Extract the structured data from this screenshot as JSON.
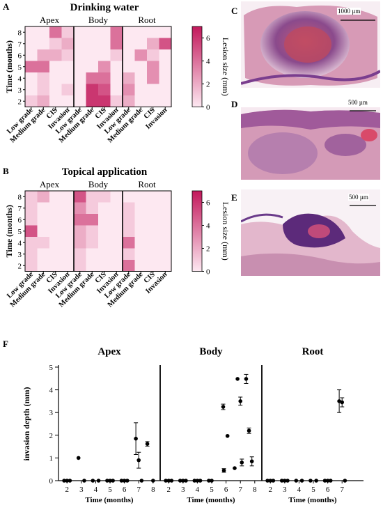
{
  "panels": {
    "a": "A",
    "b": "B",
    "c": "C",
    "d": "D",
    "e": "E",
    "f": "F"
  },
  "scales": {
    "c": "1000 µm",
    "d": "500 µm",
    "e": "500 µm"
  },
  "colors": {
    "low": "#fde8f1",
    "high": "#c2185b",
    "ink": "#000000"
  },
  "chart_data": [
    {
      "type": "heatmap",
      "title": "Drinking water",
      "ylabel": "Time (months)",
      "colorbar_label": "Lesion size (mm)",
      "colorbar_ticks": [
        "0",
        "2",
        "4",
        "6"
      ],
      "vmin": 0,
      "vmax": 7,
      "groups": [
        "Apex",
        "Body",
        "Root"
      ],
      "columns": [
        "Low grade",
        "Medium grade",
        "CIS",
        "Invasion"
      ],
      "rows": [
        "8",
        "7",
        "6",
        "5",
        "4",
        "3",
        "2"
      ],
      "values": [
        [
          [
            0,
            0,
            4,
            1
          ],
          [
            0,
            0,
            0,
            4
          ],
          [
            0,
            0,
            0,
            0
          ]
        ],
        [
          [
            0,
            0,
            1,
            2
          ],
          [
            0,
            0,
            0,
            4
          ],
          [
            0,
            0,
            2,
            5
          ]
        ],
        [
          [
            0,
            2,
            2,
            1
          ],
          [
            0,
            0,
            0,
            1
          ],
          [
            0,
            3,
            1,
            0
          ]
        ],
        [
          [
            4,
            4,
            0,
            0
          ],
          [
            0,
            0,
            3,
            0
          ],
          [
            0,
            0,
            3,
            0
          ]
        ],
        [
          [
            0,
            1,
            0,
            0
          ],
          [
            0,
            4,
            4,
            0
          ],
          [
            2,
            0,
            3,
            0
          ]
        ],
        [
          [
            0,
            1,
            0,
            1
          ],
          [
            0,
            6,
            5,
            0
          ],
          [
            3,
            0,
            0,
            0
          ]
        ],
        [
          [
            1,
            2,
            0,
            0
          ],
          [
            0,
            6,
            6,
            1
          ],
          [
            2,
            0,
            0,
            0
          ]
        ]
      ]
    },
    {
      "type": "heatmap",
      "title": "Topical application",
      "ylabel": "Time (months)",
      "colorbar_label": "Lesion size (mm)",
      "colorbar_ticks": [
        "0",
        "2",
        "4",
        "6"
      ],
      "vmin": 0,
      "vmax": 7,
      "groups": [
        "Apex",
        "Body",
        "Root"
      ],
      "columns": [
        "Low grade",
        "Medium grade",
        "CIS",
        "Invasion"
      ],
      "rows": [
        "8",
        "7",
        "6",
        "5",
        "4",
        "3",
        "2"
      ],
      "values": [
        [
          [
            1,
            2,
            0,
            0
          ],
          [
            5,
            1,
            1,
            0
          ],
          [
            0,
            0,
            0,
            0
          ]
        ],
        [
          [
            1,
            0,
            0,
            0
          ],
          [
            3,
            1,
            0,
            0
          ],
          [
            1,
            0,
            0,
            0
          ]
        ],
        [
          [
            1,
            0,
            0,
            0
          ],
          [
            4,
            4,
            0,
            0
          ],
          [
            1,
            0,
            0,
            0
          ]
        ],
        [
          [
            5,
            0,
            0,
            0
          ],
          [
            2,
            1,
            0,
            0
          ],
          [
            1,
            0,
            0,
            0
          ]
        ],
        [
          [
            1,
            1,
            0,
            0
          ],
          [
            2,
            1,
            0,
            0
          ],
          [
            4,
            0,
            0,
            0
          ]
        ],
        [
          [
            1,
            0,
            0,
            0
          ],
          [
            1,
            0,
            0,
            0
          ],
          [
            1,
            0,
            0,
            0
          ]
        ],
        [
          [
            1,
            0,
            0,
            0
          ],
          [
            1,
            0,
            0,
            0
          ],
          [
            4,
            0,
            0,
            0
          ]
        ]
      ]
    },
    {
      "type": "scatter",
      "ylabel": "invasion depth (mm)",
      "xlabel": "Time (months)",
      "ylim": [
        0,
        5
      ],
      "yticks": [
        "0",
        "1",
        "2",
        "3",
        "4",
        "5"
      ],
      "xticks": [
        "2",
        "3",
        "4",
        "5",
        "6",
        "7",
        "8"
      ],
      "xlim": [
        1.6,
        8.3
      ],
      "groups": [
        {
          "name": "Apex",
          "points": [
            {
              "x": 1.8,
              "y": 0
            },
            {
              "x": 2,
              "y": 0
            },
            {
              "x": 2.2,
              "y": 0
            },
            {
              "x": 2.8,
              "y": 1.0
            },
            {
              "x": 3.2,
              "y": 0
            },
            {
              "x": 3.8,
              "y": 0
            },
            {
              "x": 4.2,
              "y": 0
            },
            {
              "x": 4.8,
              "y": 0
            },
            {
              "x": 5,
              "y": 0
            },
            {
              "x": 5.2,
              "y": 0
            },
            {
              "x": 5.8,
              "y": 0
            },
            {
              "x": 6,
              "y": 0
            },
            {
              "x": 6.2,
              "y": 0
            },
            {
              "x": 6.8,
              "y": 1.85,
              "err": 0.7
            },
            {
              "x": 7,
              "y": 0.9,
              "err": 0.35
            },
            {
              "x": 7.2,
              "y": 0
            },
            {
              "x": 7.6,
              "y": 1.62,
              "err": 0.1
            },
            {
              "x": 8,
              "y": 0
            }
          ]
        },
        {
          "name": "Body",
          "points": [
            {
              "x": 1.8,
              "y": 0
            },
            {
              "x": 2,
              "y": 0
            },
            {
              "x": 2.2,
              "y": 0
            },
            {
              "x": 2.8,
              "y": 0
            },
            {
              "x": 3,
              "y": 0
            },
            {
              "x": 3.2,
              "y": 0
            },
            {
              "x": 3.8,
              "y": 0
            },
            {
              "x": 4,
              "y": 0
            },
            {
              "x": 4.2,
              "y": 0
            },
            {
              "x": 4.8,
              "y": 0
            },
            {
              "x": 5,
              "y": 0
            },
            {
              "x": 5.8,
              "y": 3.25,
              "err": 0.12
            },
            {
              "x": 5.85,
              "y": 0.45,
              "err": 0.08
            },
            {
              "x": 6.1,
              "y": 1.97
            },
            {
              "x": 6.6,
              "y": 0.55
            },
            {
              "x": 6.8,
              "y": 4.48
            },
            {
              "x": 7,
              "y": 3.5,
              "err": 0.18
            },
            {
              "x": 7.1,
              "y": 0.8,
              "err": 0.15
            },
            {
              "x": 7.4,
              "y": 4.48,
              "err": 0.2
            },
            {
              "x": 7.6,
              "y": 2.2,
              "err": 0.12
            },
            {
              "x": 7.8,
              "y": 0.85,
              "err": 0.2
            }
          ]
        },
        {
          "name": "Root",
          "points": [
            {
              "x": 1.8,
              "y": 0
            },
            {
              "x": 2,
              "y": 0
            },
            {
              "x": 2.2,
              "y": 0
            },
            {
              "x": 2.8,
              "y": 0
            },
            {
              "x": 3,
              "y": 0
            },
            {
              "x": 3.2,
              "y": 0
            },
            {
              "x": 3.8,
              "y": 0
            },
            {
              "x": 4.2,
              "y": 0
            },
            {
              "x": 4.8,
              "y": 0
            },
            {
              "x": 5.2,
              "y": 0
            },
            {
              "x": 5.8,
              "y": 0
            },
            {
              "x": 6,
              "y": 0
            },
            {
              "x": 6.2,
              "y": 0
            },
            {
              "x": 6.8,
              "y": 3.5,
              "err": 0.5
            },
            {
              "x": 7,
              "y": 3.45,
              "err": 0.2
            },
            {
              "x": 7.2,
              "y": 0
            }
          ]
        }
      ]
    }
  ]
}
